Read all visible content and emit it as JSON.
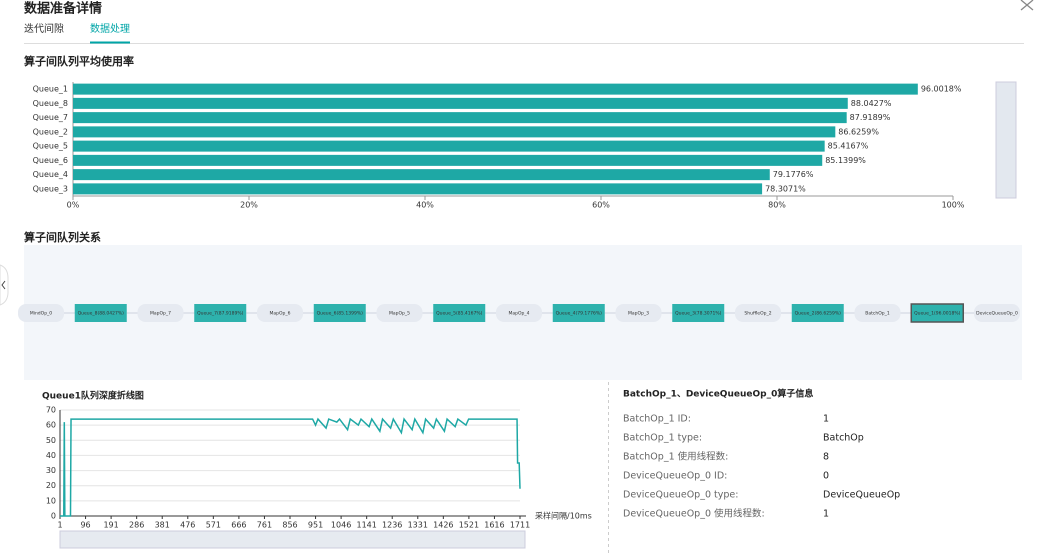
{
  "header": {
    "title": "数据准备详情",
    "tabs": [
      "迭代间隙",
      "数据处理"
    ],
    "active_tab": 1
  },
  "chart_data": [
    {
      "type": "bar",
      "orientation": "horizontal",
      "title": "算子间队列平均使用率",
      "color": "#1ea8a5",
      "categories": [
        "Queue_1",
        "Queue_8",
        "Queue_7",
        "Queue_2",
        "Queue_5",
        "Queue_6",
        "Queue_4",
        "Queue_3"
      ],
      "values": [
        96.0018,
        88.0427,
        87.9189,
        86.6259,
        85.4167,
        85.1399,
        79.1776,
        78.3071
      ],
      "value_labels": [
        "96.0018%",
        "88.0427%",
        "87.9189%",
        "86.6259%",
        "85.4167%",
        "85.1399%",
        "79.1776%",
        "78.3071%"
      ],
      "xlim": [
        0,
        100
      ],
      "xticks": [
        {
          "value": 0,
          "label": "0%"
        },
        {
          "value": 20,
          "label": "20%"
        },
        {
          "value": 40,
          "label": "40%"
        },
        {
          "value": 60,
          "label": "60%"
        },
        {
          "value": 80,
          "label": "80%"
        },
        {
          "value": 100,
          "label": "100%"
        }
      ]
    },
    {
      "type": "line",
      "title": "Queue1队列深度折线图",
      "x_label": "采样间隔/10ms",
      "color": "#1ea8a5",
      "grid": true,
      "xlim": [
        1,
        1711
      ],
      "xticks": [
        1,
        96,
        191,
        286,
        381,
        476,
        571,
        666,
        761,
        856,
        951,
        1046,
        1141,
        1236,
        1331,
        1426,
        1521,
        1616,
        1711
      ],
      "ylim": [
        0,
        70
      ],
      "yticks": [
        0,
        10,
        20,
        30,
        40,
        50,
        60,
        70
      ],
      "x": [
        1,
        15,
        17,
        19,
        40,
        42,
        940,
        951,
        960,
        990,
        1000,
        1030,
        1040,
        1070,
        1080,
        1110,
        1120,
        1150,
        1160,
        1190,
        1200,
        1230,
        1240,
        1270,
        1280,
        1310,
        1320,
        1350,
        1360,
        1390,
        1400,
        1430,
        1440,
        1470,
        1480,
        1510,
        1520,
        1700,
        1702,
        1708,
        1711
      ],
      "values": [
        0,
        0,
        62,
        0,
        0,
        64,
        64,
        60,
        64,
        58,
        64,
        62,
        64,
        57,
        64,
        60,
        64,
        59,
        64,
        56,
        64,
        58,
        64,
        55,
        64,
        57,
        64,
        55,
        64,
        58,
        64,
        56,
        64,
        59,
        64,
        60,
        64,
        64,
        35,
        35,
        18
      ]
    }
  ],
  "pipeline": {
    "title": "算子间队列关系",
    "selected": 15,
    "nodes": [
      "MindOp_0",
      "Queue_8(88.0427%)",
      "MapOp_7",
      "Queue_7(87.9189%)",
      "MapOp_6",
      "Queue_6(85.1399%)",
      "MapOp_5",
      "Queue_5(85.4167%)",
      "MapOp_4",
      "Queue_4(79.1776%)",
      "MapOp_3",
      "Queue_3(78.3071%)",
      "ShuffleOp_2",
      "Queue_2(86.6259%)",
      "BatchOp_1",
      "Queue_1(96.0018%)",
      "DeviceQueueOp_0"
    ]
  },
  "info": {
    "title": "BatchOp_1、DeviceQueueOp_0算子信息",
    "rows": [
      [
        "BatchOp_1 ID:",
        "1"
      ],
      [
        "BatchOp_1 type:",
        "BatchOp"
      ],
      [
        "BatchOp_1 使用线程数:",
        "8"
      ],
      [
        "DeviceQueueOp_0 ID:",
        "0"
      ],
      [
        "DeviceQueueOp_0 type:",
        "DeviceQueueOp"
      ],
      [
        "DeviceQueueOp_0 使用线程数:",
        "1"
      ]
    ]
  }
}
